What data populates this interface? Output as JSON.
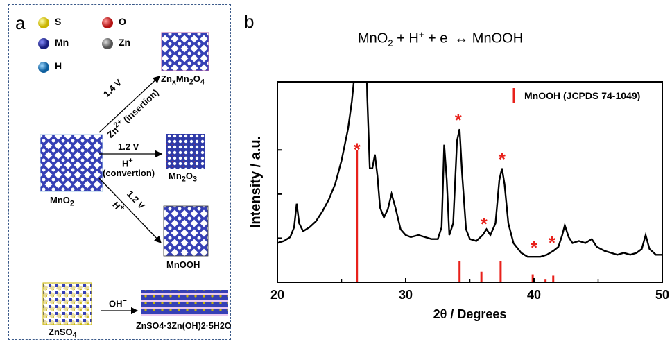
{
  "panel_a": {
    "letter": "a",
    "legend": [
      {
        "label": "S",
        "color": "#e8d400"
      },
      {
        "label": "O",
        "color": "#d62a2a"
      },
      {
        "label": "Mn",
        "color": "#2e35a8"
      },
      {
        "label": "Zn",
        "color": "#8a8a8a"
      },
      {
        "label": "H",
        "color": "#1f7fc4"
      }
    ],
    "start_structure": "MnO",
    "start_sub": "2",
    "products": [
      {
        "name": "Zn",
        "sub1": "x",
        "mid": "Mn",
        "sub2": "2",
        "mid2": "O",
        "sub3": "4"
      },
      {
        "name": "Mn",
        "sub1": "2",
        "mid": "O",
        "sub2": "3"
      },
      {
        "name": "MnOOH"
      }
    ],
    "arrows": [
      {
        "voltage": "1.4 V",
        "ion": "Zn",
        "ion_sup": "2+",
        "note": " (insertion)"
      },
      {
        "voltage": "1.2 V",
        "ion": "H",
        "ion_sup": "+",
        "note": "(convertion)"
      },
      {
        "voltage": "1.2 V",
        "ion": "H",
        "ion_sup": "+"
      }
    ],
    "bottom": {
      "reactant": "ZnSO",
      "reactant_sub": "4",
      "arrow_label": "OH",
      "arrow_sup": "−",
      "product": "ZnSO4·3Zn(OH)2·5H2O"
    }
  },
  "panel_b": {
    "letter": "b",
    "equation": "MnO2 + H+ + e- ↔ MnOOH",
    "chart_data": {
      "type": "line",
      "xlabel": "2θ / Degrees",
      "ylabel": "Intensity / a.u.",
      "xlim": [
        20,
        50
      ],
      "x_ticks": [
        "20",
        "30",
        "40",
        "50"
      ],
      "legend": "MnOOH (JCPDS 74-1049)",
      "reference_series": {
        "name": "MnOOH (JCPDS 74-1049)",
        "color": "#e8211b",
        "peaks": [
          {
            "x": 26.2,
            "rel_intensity": 1.0
          },
          {
            "x": 34.2,
            "rel_intensity": 0.16
          },
          {
            "x": 35.9,
            "rel_intensity": 0.08
          },
          {
            "x": 37.4,
            "rel_intensity": 0.16
          },
          {
            "x": 39.9,
            "rel_intensity": 0.06
          },
          {
            "x": 40.9,
            "rel_intensity": 0.02
          },
          {
            "x": 41.5,
            "rel_intensity": 0.05
          }
        ]
      },
      "marked_peaks": [
        26.2,
        34.1,
        36.1,
        37.5,
        40.0,
        41.4
      ],
      "marker": "*",
      "pattern": [
        [
          20.0,
          0.2
        ],
        [
          20.5,
          0.21
        ],
        [
          21.0,
          0.23
        ],
        [
          21.3,
          0.28
        ],
        [
          21.5,
          0.4
        ],
        [
          21.7,
          0.3
        ],
        [
          22.0,
          0.26
        ],
        [
          22.5,
          0.28
        ],
        [
          23.0,
          0.31
        ],
        [
          23.5,
          0.36
        ],
        [
          24.0,
          0.42
        ],
        [
          24.5,
          0.5
        ],
        [
          25.0,
          0.62
        ],
        [
          25.5,
          0.78
        ],
        [
          25.8,
          0.92
        ],
        [
          26.0,
          1.05
        ],
        [
          26.1,
          1.3
        ],
        [
          26.3,
          1.3
        ],
        [
          26.6,
          1.3
        ],
        [
          26.9,
          1.3
        ],
        [
          27.0,
          0.95
        ],
        [
          27.2,
          0.58
        ],
        [
          27.4,
          0.58
        ],
        [
          27.6,
          0.65
        ],
        [
          27.8,
          0.54
        ],
        [
          28.0,
          0.38
        ],
        [
          28.3,
          0.33
        ],
        [
          28.6,
          0.37
        ],
        [
          28.9,
          0.45
        ],
        [
          29.2,
          0.38
        ],
        [
          29.6,
          0.27
        ],
        [
          30.0,
          0.24
        ],
        [
          30.4,
          0.23
        ],
        [
          31.0,
          0.24
        ],
        [
          31.5,
          0.23
        ],
        [
          32.0,
          0.22
        ],
        [
          32.5,
          0.22
        ],
        [
          32.8,
          0.28
        ],
        [
          33.0,
          0.7
        ],
        [
          33.2,
          0.52
        ],
        [
          33.4,
          0.24
        ],
        [
          33.7,
          0.3
        ],
        [
          34.0,
          0.72
        ],
        [
          34.2,
          0.78
        ],
        [
          34.4,
          0.55
        ],
        [
          34.7,
          0.27
        ],
        [
          35.0,
          0.22
        ],
        [
          35.5,
          0.21
        ],
        [
          36.0,
          0.24
        ],
        [
          36.3,
          0.27
        ],
        [
          36.6,
          0.24
        ],
        [
          37.0,
          0.3
        ],
        [
          37.3,
          0.52
        ],
        [
          37.5,
          0.58
        ],
        [
          37.7,
          0.5
        ],
        [
          38.0,
          0.3
        ],
        [
          38.4,
          0.2
        ],
        [
          39.0,
          0.15
        ],
        [
          39.5,
          0.13
        ],
        [
          40.0,
          0.13
        ],
        [
          40.5,
          0.13
        ],
        [
          41.0,
          0.14
        ],
        [
          41.5,
          0.16
        ],
        [
          41.9,
          0.18
        ],
        [
          42.2,
          0.24
        ],
        [
          42.4,
          0.29
        ],
        [
          42.7,
          0.23
        ],
        [
          43.0,
          0.2
        ],
        [
          43.5,
          0.21
        ],
        [
          44.0,
          0.2
        ],
        [
          44.5,
          0.22
        ],
        [
          44.9,
          0.18
        ],
        [
          45.5,
          0.16
        ],
        [
          46.0,
          0.15
        ],
        [
          46.5,
          0.14
        ],
        [
          47.0,
          0.15
        ],
        [
          47.5,
          0.14
        ],
        [
          48.0,
          0.15
        ],
        [
          48.4,
          0.17
        ],
        [
          48.7,
          0.24
        ],
        [
          49.0,
          0.17
        ],
        [
          49.5,
          0.14
        ],
        [
          50.0,
          0.14
        ]
      ]
    }
  }
}
